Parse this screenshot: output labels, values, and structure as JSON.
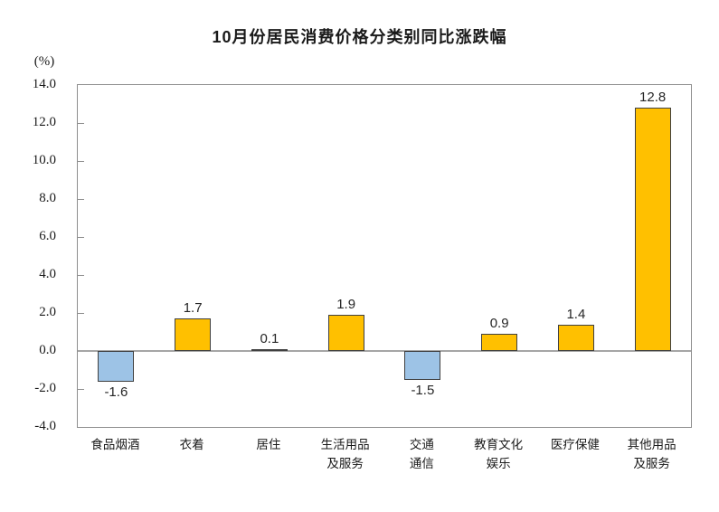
{
  "chart_data": {
    "type": "bar",
    "title": "10月份居民消费价格分类别同比涨跌幅",
    "unit_label": "(%)",
    "categories": [
      "食品烟酒",
      "衣着",
      "居住",
      "生活用品及服务",
      "交通通信",
      "教育文化娱乐",
      "医疗保健",
      "其他用品及服务"
    ],
    "category_label_lines": [
      [
        "食品烟酒"
      ],
      [
        "衣着"
      ],
      [
        "居住"
      ],
      [
        "生活用品",
        "及服务"
      ],
      [
        "交通",
        "通信"
      ],
      [
        "教育文化",
        "娱乐"
      ],
      [
        "医疗保健"
      ],
      [
        "其他用品",
        "及服务"
      ]
    ],
    "values": [
      -1.6,
      1.7,
      0.1,
      1.9,
      -1.5,
      0.9,
      1.4,
      12.8
    ],
    "value_labels": [
      "-1.6",
      "1.7",
      "0.1",
      "1.9",
      "-1.5",
      "0.9",
      "1.4",
      "12.8"
    ],
    "xlabel": "",
    "ylabel": "(%)",
    "ylim": [
      -4.0,
      14.0
    ],
    "ytick_values": [
      14,
      12,
      10,
      8,
      6,
      4,
      2,
      0,
      -2,
      -4
    ],
    "ytick_labels": [
      "14.0",
      "12.0",
      "10.0",
      "8.0",
      "6.0",
      "4.0",
      "2.0",
      "0.0",
      "-2.0",
      "-4.0"
    ],
    "grid": "zero-line-only",
    "legend": "none",
    "colors": {
      "positive_fill": "#FFC000",
      "negative_fill": "#9DC3E6",
      "bar_border": "#404040",
      "axis_frame": "#8F8F8F",
      "zero_line": "#A6A6A6",
      "text": "#1A1A1A"
    }
  }
}
